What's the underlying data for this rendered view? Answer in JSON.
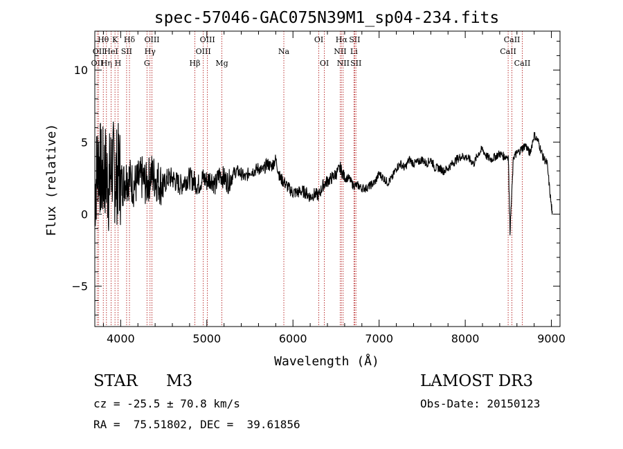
{
  "chart_data": {
    "type": "line",
    "title": "spec-57046-GAC075N39M1_sp04-234.fits",
    "xlabel": "Wavelength (Å)",
    "ylabel": "Flux (relative)",
    "xlim": [
      3700,
      9100
    ],
    "ylim": [
      -7.8,
      12.7
    ],
    "xticks": [
      4000,
      5000,
      6000,
      7000,
      8000,
      9000
    ],
    "xtick_labels": [
      "4000",
      "5000",
      "6000",
      "7000",
      "8000",
      "9000"
    ],
    "yticks": [
      -5,
      0,
      5,
      10
    ],
    "ytick_labels": [
      "−5",
      "0",
      "5",
      "10"
    ],
    "grid": false,
    "series": [
      {
        "x": [
          3700,
          3740,
          3780,
          3820,
          3860,
          3900,
          3940,
          3980,
          4020,
          4060,
          4100,
          4150,
          4200,
          4250,
          4300,
          4350,
          4400,
          4450,
          4500,
          4550,
          4600,
          4650,
          4700,
          4750,
          4800,
          4850,
          4900,
          4950,
          5000,
          5050,
          5100,
          5150,
          5200,
          5250,
          5300,
          5350,
          5400,
          5450,
          5500,
          5550,
          5600,
          5650,
          5700,
          5750,
          5800,
          5850,
          5900,
          5950,
          6000,
          6050,
          6100,
          6150,
          6200,
          6250,
          6300,
          6350,
          6400,
          6450,
          6500,
          6550,
          6600,
          6650,
          6700,
          6750,
          6800,
          6850,
          6900,
          6950,
          7000,
          7050,
          7100,
          7150,
          7200,
          7250,
          7300,
          7350,
          7400,
          7450,
          7500,
          7550,
          7600,
          7650,
          7700,
          7750,
          7800,
          7850,
          7900,
          7950,
          8000,
          8050,
          8100,
          8150,
          8200,
          8250,
          8300,
          8350,
          8400,
          8450,
          8500,
          8520,
          8560,
          8600,
          8650,
          8700,
          8750,
          8800,
          8850,
          8900,
          8950,
          9000,
          9010
        ],
        "y": [
          1.5,
          4.0,
          2.5,
          3.0,
          2.0,
          3.5,
          2.5,
          3.0,
          2.0,
          2.5,
          2.5,
          2.0,
          2.2,
          2.5,
          2.0,
          2.8,
          2.5,
          2.2,
          2.0,
          2.5,
          2.5,
          2.2,
          2.0,
          2.4,
          2.5,
          2.3,
          2.0,
          2.5,
          2.3,
          2.5,
          2.0,
          2.8,
          2.5,
          2.2,
          2.8,
          3.0,
          2.8,
          2.5,
          3.0,
          3.0,
          3.2,
          3.0,
          3.5,
          3.3,
          3.8,
          2.5,
          2.2,
          1.8,
          1.5,
          1.5,
          1.6,
          1.5,
          1.2,
          1.4,
          1.3,
          2.0,
          2.3,
          2.5,
          2.8,
          3.2,
          2.5,
          2.5,
          2.0,
          2.0,
          1.8,
          1.8,
          2.0,
          2.2,
          2.8,
          2.5,
          2.2,
          2.5,
          3.2,
          3.5,
          3.2,
          3.8,
          3.5,
          3.6,
          3.8,
          3.5,
          3.8,
          3.2,
          3.2,
          3.0,
          3.2,
          3.5,
          3.8,
          4.0,
          4.0,
          3.8,
          3.5,
          4.2,
          4.5,
          4.0,
          3.8,
          4.0,
          4.2,
          4.0,
          4.0,
          -1.2,
          4.0,
          4.2,
          4.5,
          4.8,
          4.2,
          5.5,
          5.0,
          4.0,
          3.5,
          0.5,
          0.2
        ]
      }
    ],
    "lines": [
      {
        "label": "OII",
        "x": 3727,
        "row": 2
      },
      {
        "label": "Hθ",
        "x": 3798,
        "row": 0
      },
      {
        "label": "Hη",
        "x": 3835,
        "row": 2
      },
      {
        "label": "OII",
        "x": 3745,
        "row": 1
      },
      {
        "label": "HeI",
        "x": 3889,
        "row": 1
      },
      {
        "label": "K",
        "x": 3934,
        "row": 0
      },
      {
        "label": "H",
        "x": 3969,
        "row": 2
      },
      {
        "label": "SII",
        "x": 4069,
        "row": 1
      },
      {
        "label": "Hδ",
        "x": 4102,
        "row": 0
      },
      {
        "label": "G",
        "x": 4305,
        "row": 2
      },
      {
        "label": "Hγ",
        "x": 4341,
        "row": 1
      },
      {
        "label": "OIII",
        "x": 4363,
        "row": 0
      },
      {
        "label": "Hβ",
        "x": 4861,
        "row": 2
      },
      {
        "label": "OIII",
        "x": 4959,
        "row": 1
      },
      {
        "label": "OIII",
        "x": 5007,
        "row": 0
      },
      {
        "label": "Mg",
        "x": 5175,
        "row": 2
      },
      {
        "label": "Na",
        "x": 5894,
        "row": 1
      },
      {
        "label": "OI",
        "x": 6300,
        "row": 0
      },
      {
        "label": "OI",
        "x": 6364,
        "row": 2
      },
      {
        "label": "NII",
        "x": 6548,
        "row": 1
      },
      {
        "label": "Hα",
        "x": 6563,
        "row": 0
      },
      {
        "label": "NII",
        "x": 6583,
        "row": 2
      },
      {
        "label": "Li",
        "x": 6708,
        "row": 1
      },
      {
        "label": "SII",
        "x": 6716,
        "row": 0
      },
      {
        "label": "SII",
        "x": 6731,
        "row": 2
      },
      {
        "label": "CaII",
        "x": 8498,
        "row": 1
      },
      {
        "label": "CaII",
        "x": 8542,
        "row": 0
      },
      {
        "label": "CaII",
        "x": 8662,
        "row": 2
      }
    ]
  },
  "info": {
    "object_class": "STAR",
    "subclass": "M3",
    "survey": "LAMOST DR3",
    "redshift": "cz = -25.5 ± 70.8 km/s",
    "obs_date": "Obs-Date: 20150123",
    "coords": "RA =  75.51802, DEC =  39.61856"
  },
  "colors": {
    "spectrum": "#000000",
    "line_markers": "#aa0000",
    "axes": "#000000"
  }
}
